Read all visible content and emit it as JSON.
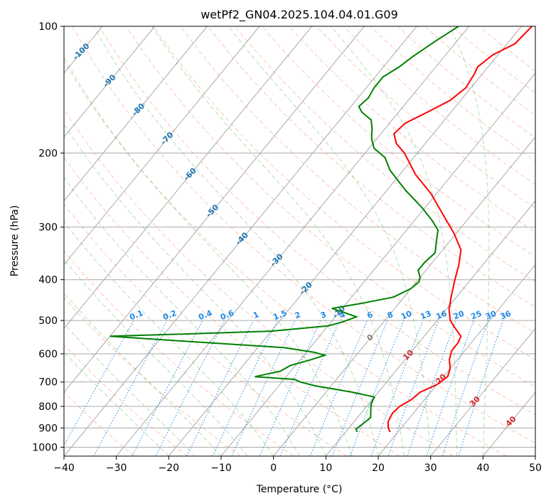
{
  "chart_data": {
    "type": "line",
    "subtype": "skew-t log-p diagram",
    "title": "wetPf2_GN04.2025.104.04.01.G09",
    "xlabel": "Temperature (°C)",
    "ylabel": "Pressure (hPa)",
    "xlim": [
      -40,
      50
    ],
    "ylim": [
      1050,
      100
    ],
    "y_scale": "log",
    "grid": true,
    "x_ticks": [
      "−40",
      "−30",
      "−20",
      "−10",
      "0",
      "10",
      "20",
      "30",
      "40",
      "50"
    ],
    "y_ticks": [
      "100",
      "200",
      "300",
      "400",
      "500",
      "600",
      "700",
      "800",
      "900",
      "1000"
    ],
    "colors": {
      "temperature": "#ff0000",
      "dewpoint": "#008000",
      "isotherm_labels": "#1f77b4",
      "mixing_ratio": "#1e88e5",
      "dry_adiabat": "#ff7f50",
      "moist_adiabat": "#2ca02c",
      "isotherm": "#aaaaaa",
      "red_labels": "#d62728",
      "grey_label": "#808080"
    },
    "isotherm_labels": [
      "-100",
      "-90",
      "-80",
      "-70",
      "-60",
      "-50",
      "-40",
      "-30",
      "-20",
      "-10"
    ],
    "mixing_ratio_labels": [
      "0.1",
      "0.2",
      "0.4",
      "0.6",
      "1",
      "1.5",
      "2",
      "3",
      "4",
      "6",
      "8",
      "10",
      "13",
      "16",
      "20",
      "25",
      "30",
      "36"
    ],
    "zero_label": "0",
    "red_labels": [
      "10",
      "20",
      "30",
      "40"
    ],
    "series": [
      {
        "key": "temperature",
        "points": [
          [
            920,
            18.5
          ],
          [
            900,
            17.5
          ],
          [
            870,
            16.5
          ],
          [
            830,
            16.0
          ],
          [
            800,
            16.3
          ],
          [
            770,
            17.5
          ],
          [
            740,
            18.0
          ],
          [
            710,
            20.0
          ],
          [
            680,
            20.8
          ],
          [
            650,
            20.0
          ],
          [
            620,
            18.5
          ],
          [
            590,
            17.5
          ],
          [
            565,
            17.5
          ],
          [
            545,
            17.0
          ],
          [
            520,
            14.5
          ],
          [
            500,
            12.5
          ],
          [
            470,
            10.5
          ],
          [
            440,
            9.0
          ],
          [
            400,
            7.0
          ],
          [
            370,
            5.5
          ],
          [
            340,
            3.5
          ],
          [
            310,
            -0.5
          ],
          [
            280,
            -5.5
          ],
          [
            250,
            -11.0
          ],
          [
            225,
            -17.0
          ],
          [
            200,
            -22.5
          ],
          [
            190,
            -25.5
          ],
          [
            180,
            -27.5
          ],
          [
            170,
            -27.0
          ],
          [
            160,
            -24.5
          ],
          [
            150,
            -22.0
          ],
          [
            140,
            -21.0
          ],
          [
            130,
            -21.5
          ],
          [
            125,
            -22.0
          ],
          [
            117,
            -21.0
          ],
          [
            110,
            -18.5
          ],
          [
            100,
            -18.0
          ]
        ]
      },
      {
        "key": "dewpoint",
        "points": [
          [
            920,
            12.2
          ],
          [
            905,
            11.5
          ],
          [
            880,
            12.0
          ],
          [
            850,
            12.5
          ],
          [
            820,
            11.5
          ],
          [
            790,
            10.5
          ],
          [
            760,
            10.0
          ],
          [
            740,
            5.0
          ],
          [
            715,
            -3.0
          ],
          [
            700,
            -6.5
          ],
          [
            690,
            -8.0
          ],
          [
            680,
            -16.0
          ],
          [
            660,
            -12.0
          ],
          [
            640,
            -11.0
          ],
          [
            620,
            -8.0
          ],
          [
            605,
            -6.0
          ],
          [
            595,
            -8.5
          ],
          [
            580,
            -15.0
          ],
          [
            570,
            -25.0
          ],
          [
            560,
            -35.0
          ],
          [
            550,
            -45.0
          ],
          [
            545,
            -50.0
          ],
          [
            538,
            -35.0
          ],
          [
            530,
            -20.0
          ],
          [
            515,
            -10.0
          ],
          [
            505,
            -8.0
          ],
          [
            490,
            -6.0
          ],
          [
            475,
            -10.0
          ],
          [
            468,
            -12.0
          ],
          [
            455,
            -7.0
          ],
          [
            440,
            -2.0
          ],
          [
            420,
            0.0
          ],
          [
            405,
            0.5
          ],
          [
            395,
            0.0
          ],
          [
            380,
            -1.5
          ],
          [
            365,
            -1.5
          ],
          [
            345,
            -1.0
          ],
          [
            325,
            -2.5
          ],
          [
            305,
            -4.0
          ],
          [
            290,
            -6.5
          ],
          [
            270,
            -10.5
          ],
          [
            245,
            -16.5
          ],
          [
            220,
            -22.5
          ],
          [
            205,
            -25.5
          ],
          [
            195,
            -29.0
          ],
          [
            185,
            -31.0
          ],
          [
            175,
            -32.5
          ],
          [
            167,
            -34.0
          ],
          [
            160,
            -37.0
          ],
          [
            155,
            -38.5
          ],
          [
            148,
            -38.0
          ],
          [
            140,
            -38.5
          ],
          [
            132,
            -38.5
          ],
          [
            125,
            -37.0
          ],
          [
            118,
            -36.0
          ],
          [
            108,
            -34.0
          ],
          [
            100,
            -32.0
          ]
        ]
      }
    ]
  }
}
